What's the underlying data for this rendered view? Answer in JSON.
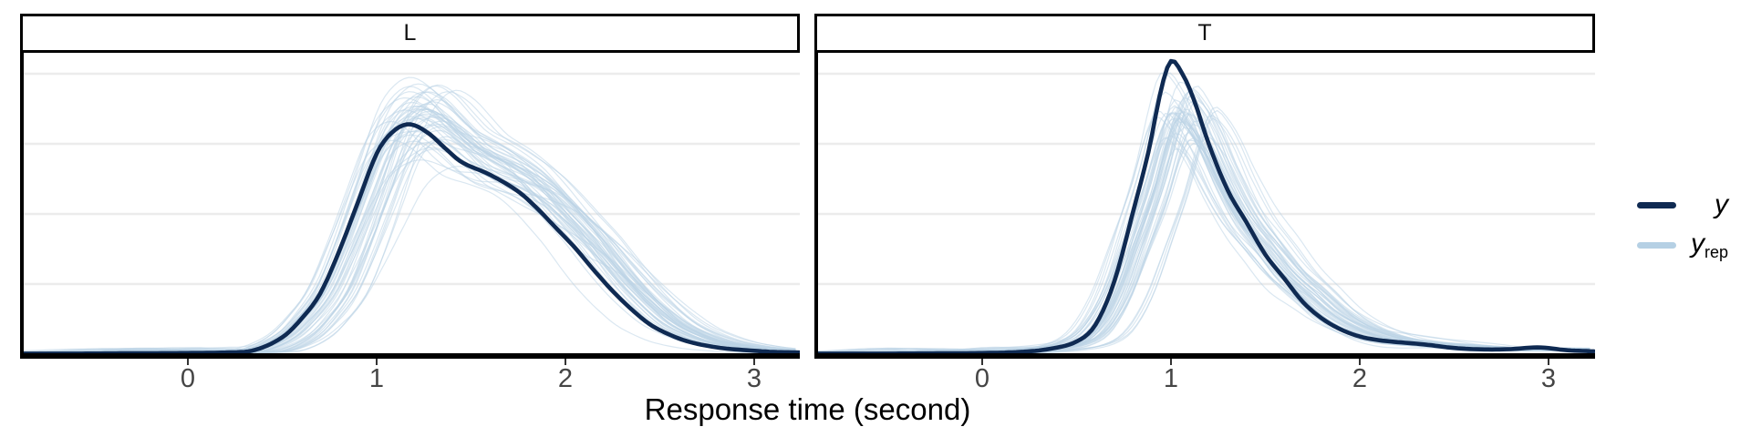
{
  "figure": {
    "facets": [
      {
        "label": "L"
      },
      {
        "label": "T"
      }
    ],
    "x_axis": {
      "title": "Response time (second)",
      "tick_labels": [
        "0",
        "1",
        "2",
        "3"
      ],
      "tick_values": [
        0,
        1,
        2,
        3
      ]
    },
    "legend": {
      "items": [
        {
          "label": "y",
          "subscript": ""
        },
        {
          "label": "y",
          "subscript": "rep"
        }
      ]
    },
    "colors": {
      "y_line": "#0f2a52",
      "yrep_line": "#bcd3e6",
      "yrep_key": "#b5d0e4",
      "gridline": "#ececec",
      "axis": "#000000",
      "tick_label": "#454545",
      "strip_text": "#111111"
    }
  },
  "chart_data": {
    "type": "line",
    "subtype": "posterior-predictive-density-overlay",
    "title": "",
    "xlabel": "Response time (second)",
    "ylabel": "",
    "xlim": [
      -0.88,
      3.24
    ],
    "ylim": [
      0,
      1.08
    ],
    "x_ticks": [
      0,
      1,
      2,
      3
    ],
    "grid": "horizontal",
    "grid_densities": [
      0.25,
      0.5,
      0.75,
      1.0
    ],
    "legend_entries": [
      "y",
      "y_rep"
    ],
    "legend_position": "right",
    "panels": [
      {
        "facet": "L",
        "peak_x": 1.17,
        "y_density": [
          [
            -0.89,
            0.002
          ],
          [
            -0.6,
            0.002
          ],
          [
            -0.3,
            0.003
          ],
          [
            0.0,
            0.004
          ],
          [
            0.2,
            0.006
          ],
          [
            0.35,
            0.014
          ],
          [
            0.5,
            0.06
          ],
          [
            0.6,
            0.125
          ],
          [
            0.7,
            0.215
          ],
          [
            0.8,
            0.365
          ],
          [
            0.9,
            0.54
          ],
          [
            1.0,
            0.715
          ],
          [
            1.08,
            0.79
          ],
          [
            1.17,
            0.82
          ],
          [
            1.27,
            0.79
          ],
          [
            1.37,
            0.73
          ],
          [
            1.45,
            0.685
          ],
          [
            1.6,
            0.64
          ],
          [
            1.75,
            0.58
          ],
          [
            1.85,
            0.52
          ],
          [
            1.95,
            0.45
          ],
          [
            2.05,
            0.38
          ],
          [
            2.15,
            0.3
          ],
          [
            2.25,
            0.225
          ],
          [
            2.35,
            0.16
          ],
          [
            2.45,
            0.105
          ],
          [
            2.55,
            0.07
          ],
          [
            2.65,
            0.045
          ],
          [
            2.75,
            0.03
          ],
          [
            2.85,
            0.02
          ],
          [
            3.0,
            0.012
          ],
          [
            3.1,
            0.008
          ],
          [
            3.24,
            0.006
          ]
        ],
        "yrep": {
          "count": 50,
          "seed": 101,
          "amp_mean": 1.06,
          "amp_sd": 0.09,
          "shift_mean": 0.09,
          "shift_sd": 0.08,
          "width_mean": 1.04,
          "width_sd": 0.055,
          "wiggle_amp_sd": 0.038,
          "tail_bump_prob": 0.5
        }
      },
      {
        "facet": "T",
        "peak_x": 1.0,
        "y_density": [
          [
            -0.89,
            0.002
          ],
          [
            -0.5,
            0.002
          ],
          [
            -0.2,
            0.003
          ],
          [
            0.0,
            0.004
          ],
          [
            0.2,
            0.008
          ],
          [
            0.35,
            0.018
          ],
          [
            0.5,
            0.045
          ],
          [
            0.6,
            0.105
          ],
          [
            0.7,
            0.26
          ],
          [
            0.8,
            0.51
          ],
          [
            0.88,
            0.72
          ],
          [
            0.95,
            0.95
          ],
          [
            1.0,
            1.045
          ],
          [
            1.06,
            1.0
          ],
          [
            1.12,
            0.91
          ],
          [
            1.2,
            0.75
          ],
          [
            1.3,
            0.585
          ],
          [
            1.4,
            0.47
          ],
          [
            1.5,
            0.355
          ],
          [
            1.6,
            0.27
          ],
          [
            1.7,
            0.185
          ],
          [
            1.8,
            0.127
          ],
          [
            1.9,
            0.088
          ],
          [
            2.0,
            0.063
          ],
          [
            2.1,
            0.05
          ],
          [
            2.2,
            0.043
          ],
          [
            2.35,
            0.034
          ],
          [
            2.5,
            0.022
          ],
          [
            2.65,
            0.017
          ],
          [
            2.8,
            0.018
          ],
          [
            2.95,
            0.024
          ],
          [
            3.1,
            0.014
          ],
          [
            3.24,
            0.01
          ]
        ],
        "yrep": {
          "count": 50,
          "seed": 202,
          "amp_mean": 0.82,
          "amp_sd": 0.06,
          "shift_mean": 0.07,
          "shift_sd": 0.07,
          "width_mean": 1.12,
          "width_sd": 0.06,
          "wiggle_amp_sd": 0.032,
          "tail_bump_prob": 0.6
        }
      }
    ]
  }
}
